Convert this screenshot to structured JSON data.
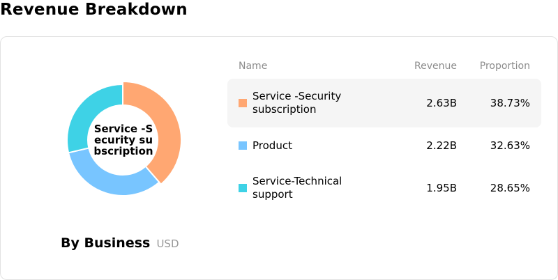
{
  "page": {
    "title": "Revenue Breakdown"
  },
  "donut": {
    "center_label": "Service -Security subscription"
  },
  "caption": {
    "main": "By Business",
    "unit": "USD"
  },
  "table": {
    "headers": {
      "name": "Name",
      "revenue": "Revenue",
      "proportion": "Proportion"
    },
    "rows": [
      {
        "name": "Service -Security subscription",
        "revenue": "2.63B",
        "proportion": "38.73%",
        "color": "#ffa772",
        "active": true
      },
      {
        "name": "Product",
        "revenue": "2.22B",
        "proportion": "32.63%",
        "color": "#78c5ff",
        "active": false
      },
      {
        "name": "Service-Technical support",
        "revenue": "1.95B",
        "proportion": "28.65%",
        "color": "#3ed2e6",
        "active": false
      }
    ]
  },
  "chart_data": {
    "type": "pie",
    "categories": [
      "Service -Security subscription",
      "Product",
      "Service-Technical support"
    ],
    "values": [
      2.63,
      2.22,
      1.95
    ],
    "percentages": [
      38.73,
      32.63,
      28.65
    ],
    "colors": [
      "#ffa772",
      "#78c5ff",
      "#3ed2e6"
    ],
    "unit": "USD",
    "donut": true,
    "highlighted": "Service -Security subscription"
  }
}
